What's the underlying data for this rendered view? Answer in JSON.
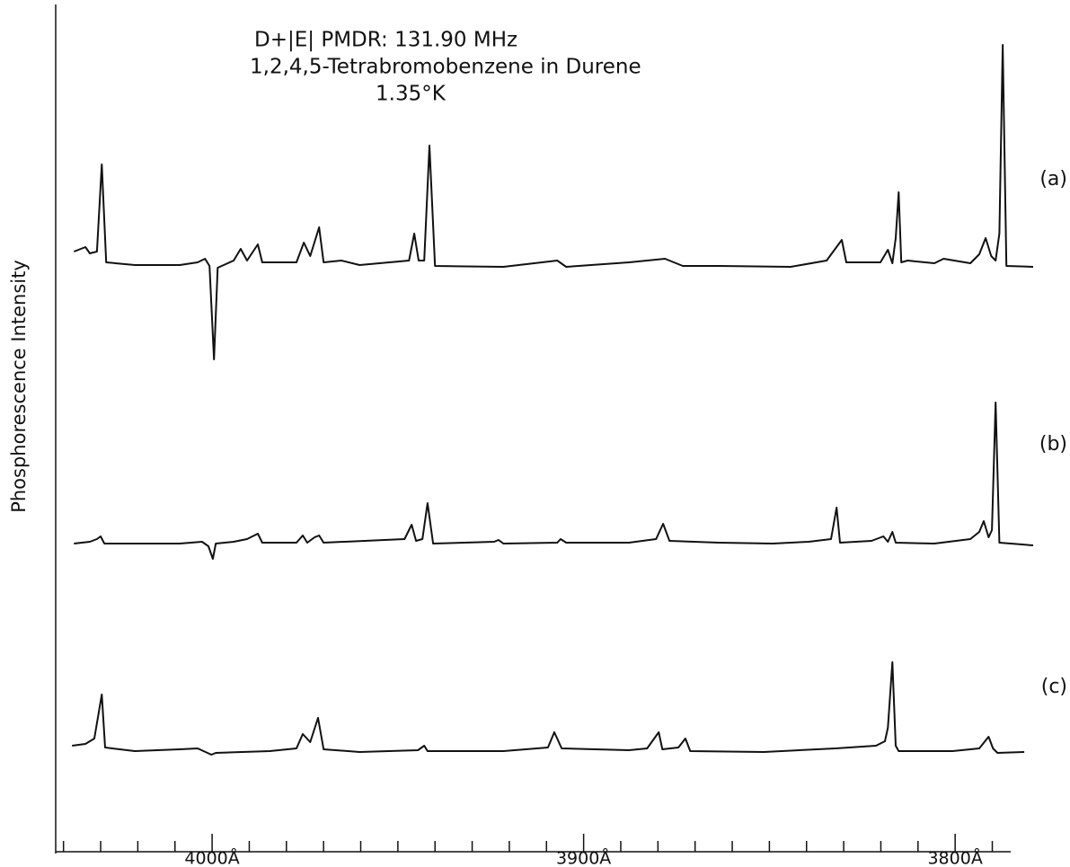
{
  "chart_data": {
    "type": "line",
    "title": [
      "D+|E| PMDR: 131.90 MHz",
      "1,2,4,5-Tetrabromobenzene in Durene",
      "1.35°K"
    ],
    "y_label": "Phosphorescence Intensity",
    "xlim": [
      4042.1,
      3779.0
    ],
    "xticks": [
      {
        "value": 4000,
        "label": "4000Å"
      },
      {
        "value": 3900,
        "label": "3900Å"
      },
      {
        "value": 3800,
        "label": "3800Å"
      }
    ],
    "xminorticks": [
      4040,
      4030,
      4020,
      4010,
      3990,
      3980,
      3970,
      3960,
      3950,
      3940,
      3930,
      3920,
      3910,
      3890,
      3880,
      3870,
      3860,
      3850,
      3840,
      3830,
      3820,
      3810,
      3790
    ],
    "series": [
      {
        "name": "(a)",
        "color": "#111111",
        "ylim": [
          -160,
          250
        ],
        "x": [
          4037.2,
          4034.1,
          4032.9,
          4031.0,
          4029.7,
          4028.5,
          4020.8,
          4008.7,
          4003.9,
          4001.9,
          4000.7,
          3999.5,
          3998.5,
          3994.2,
          3992.3,
          3990.6,
          3987.7,
          3986.5,
          3977.3,
          3975.3,
          3973.6,
          3971.2,
          3970.0,
          3965.2,
          3960.3,
          3947.0,
          3945.6,
          3944.4,
          3942.9,
          3941.5,
          3940.0,
          3921.6,
          3907.1,
          3904.7,
          3887.8,
          3878.1,
          3873.3,
          3863.6,
          3844.3,
          3834.6,
          3830.5,
          3829.3,
          3820.1,
          3818.1,
          3816.9,
          3816.0,
          3815.2,
          3814.5,
          3812.8,
          3805.6,
          3803.1,
          3795.9,
          3793.5,
          3791.8,
          3790.3,
          3789.1,
          3788.1,
          3787.2,
          3786.2,
          3779.0
        ],
        "values": [
          15,
          20,
          13,
          15,
          112,
          3,
          0,
          0,
          3,
          7,
          -1,
          -105,
          -3,
          5,
          18,
          5,
          23,
          3,
          3,
          25,
          10,
          42,
          3,
          5,
          0,
          5,
          35,
          5,
          5,
          133,
          -1,
          -2,
          5,
          -2,
          3,
          7,
          -1,
          -1,
          -2,
          5,
          28,
          3,
          3,
          17,
          2,
          30,
          81,
          3,
          5,
          2,
          7,
          2,
          12,
          30,
          10,
          5,
          35,
          245,
          -1,
          -2
        ]
      },
      {
        "name": "(b)",
        "color": "#111111",
        "ylim": [
          -150,
          150
        ],
        "x": [
          4037.2,
          4032.9,
          4031.0,
          4030.0,
          4029.0,
          4008.7,
          4002.7,
          4001.0,
          3999.8,
          3999.0,
          3994.2,
          3990.6,
          3987.7,
          3986.5,
          3977.3,
          3975.6,
          3974.4,
          3972.4,
          3971.2,
          3970.0,
          3948.2,
          3946.3,
          3945.1,
          3943.4,
          3942.0,
          3940.5,
          3924.1,
          3922.9,
          3921.6,
          3907.1,
          3906.2,
          3904.7,
          3887.8,
          3880.5,
          3878.6,
          3876.9,
          3863.6,
          3849.1,
          3839.4,
          3833.4,
          3831.9,
          3831.0,
          3822.5,
          3819.3,
          3818.1,
          3816.9,
          3816.0,
          3805.6,
          3795.9,
          3793.5,
          3792.3,
          3791.0,
          3790.1,
          3789.1,
          3788.1,
          3779.0
        ],
        "values": [
          0,
          2,
          5,
          8,
          0,
          0,
          2,
          -3,
          -17,
          0,
          2,
          5,
          11,
          1,
          1,
          9,
          1,
          7,
          9,
          1,
          5,
          21,
          3,
          5,
          45,
          0,
          2,
          4,
          0,
          1,
          5,
          1,
          1,
          5,
          22,
          3,
          1,
          0,
          2,
          5,
          40,
          1,
          3,
          8,
          2,
          13,
          1,
          0,
          5,
          13,
          25,
          7,
          15,
          157,
          1,
          -2
        ]
      },
      {
        "name": "(c)",
        "color": "#111111",
        "ylim": [
          -80,
          80
        ],
        "x": [
          4037.7,
          4034.1,
          4031.7,
          4029.7,
          4028.8,
          4020.8,
          4008.7,
          4003.9,
          4000.2,
          3999.0,
          3984.5,
          3977.3,
          3975.6,
          3973.6,
          3971.5,
          3970.0,
          3960.3,
          3944.6,
          3942.9,
          3942.0,
          3921.6,
          3909.6,
          3907.9,
          3905.9,
          3887.8,
          3882.9,
          3879.8,
          3878.8,
          3874.5,
          3872.6,
          3871.3,
          3851.5,
          3832.2,
          3821.3,
          3818.9,
          3818.1,
          3816.9,
          3816.0,
          3815.2,
          3800.7,
          3793.5,
          3791.0,
          3789.8,
          3788.6,
          3781.4
        ],
        "values": [
          5,
          7,
          13,
          62,
          3,
          -1,
          1,
          2,
          -5,
          -3,
          -1,
          2,
          18,
          9,
          36,
          1,
          -2,
          0,
          5,
          -1,
          -1,
          3,
          20,
          2,
          0,
          2,
          20,
          1,
          3,
          13,
          -1,
          -2,
          2,
          5,
          10,
          25,
          98,
          5,
          -1,
          -1,
          2,
          15,
          2,
          -3,
          -2
        ]
      }
    ]
  }
}
